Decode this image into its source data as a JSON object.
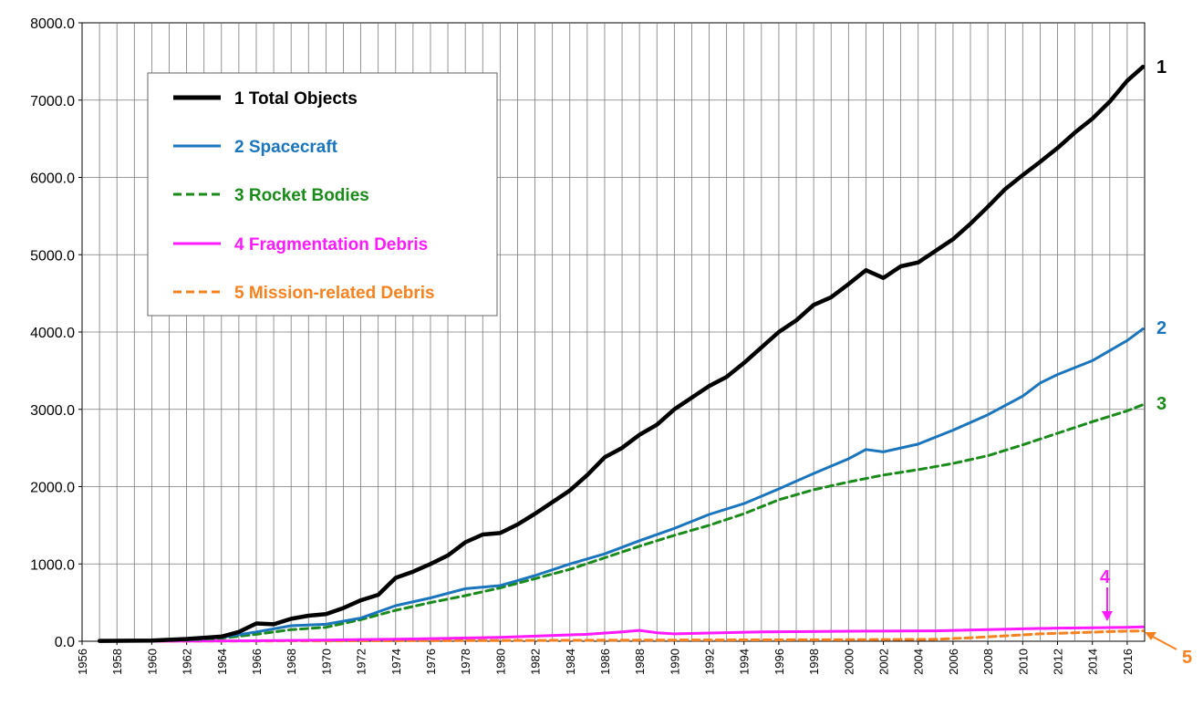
{
  "chart_data": {
    "type": "line",
    "title": "",
    "xlabel": "",
    "ylabel": "",
    "xlim": [
      1956,
      2017
    ],
    "ylim": [
      0,
      8000
    ],
    "grid": true,
    "legend_position": "top-left",
    "y_ticks": [
      "0.0",
      "1000.0",
      "2000.0",
      "3000.0",
      "4000.0",
      "5000.0",
      "6000.0",
      "7000.0",
      "8000.0"
    ],
    "x_ticks": [
      "1956",
      "1958",
      "1960",
      "1962",
      "1964",
      "1966",
      "1968",
      "1970",
      "1972",
      "1974",
      "1976",
      "1978",
      "1980",
      "1982",
      "1984",
      "1986",
      "1988",
      "1990",
      "1992",
      "1994",
      "1996",
      "1998",
      "2000",
      "2002",
      "2004",
      "2006",
      "2008",
      "2010",
      "2012",
      "2014",
      "2016"
    ],
    "series": [
      {
        "name": "1 Total Objects",
        "end_label": "1",
        "color": "#000000",
        "style": "solid",
        "x": [
          1957,
          1960,
          1962,
          1964,
          1965,
          1966,
          1967,
          1968,
          1969,
          1970,
          1971,
          1972,
          1973,
          1974,
          1975,
          1976,
          1977,
          1978,
          1979,
          1980,
          1981,
          1982,
          1983,
          1984,
          1985,
          1986,
          1987,
          1988,
          1989,
          1990,
          1991,
          1992,
          1993,
          1994,
          1995,
          1996,
          1997,
          1998,
          1999,
          2000,
          2001,
          2002,
          2003,
          2004,
          2005,
          2006,
          2007,
          2008,
          2009,
          2010,
          2011,
          2012,
          2013,
          2014,
          2015,
          2016,
          2016.9
        ],
        "values": [
          5,
          10,
          30,
          60,
          120,
          230,
          220,
          290,
          330,
          350,
          430,
          530,
          600,
          820,
          900,
          1000,
          1110,
          1280,
          1380,
          1400,
          1510,
          1650,
          1800,
          1950,
          2150,
          2380,
          2500,
          2670,
          2800,
          3000,
          3150,
          3300,
          3420,
          3600,
          3800,
          4000,
          4150,
          4350,
          4450,
          4620,
          4800,
          4700,
          4850,
          4900,
          5050,
          5200,
          5400,
          5620,
          5850,
          6030,
          6200,
          6380,
          6580,
          6760,
          6980,
          7250,
          7430
        ]
      },
      {
        "name": "2 Spacecraft",
        "end_label": "2",
        "color": "#1b75bc",
        "style": "solid",
        "x": [
          1957,
          1960,
          1962,
          1964,
          1966,
          1968,
          1970,
          1972,
          1974,
          1976,
          1978,
          1980,
          1982,
          1984,
          1986,
          1988,
          1990,
          1992,
          1994,
          1996,
          1998,
          2000,
          2001,
          2002,
          2004,
          2006,
          2008,
          2010,
          2011,
          2012,
          2014,
          2016,
          2016.9
        ],
        "values": [
          3,
          8,
          20,
          50,
          120,
          200,
          220,
          300,
          460,
          560,
          680,
          720,
          850,
          1000,
          1130,
          1300,
          1460,
          1640,
          1780,
          1970,
          2170,
          2360,
          2480,
          2450,
          2550,
          2730,
          2930,
          3170,
          3340,
          3450,
          3630,
          3890,
          4040
        ]
      },
      {
        "name": "3 Rocket Bodies",
        "end_label": "3",
        "color": "#1a8a1a",
        "style": "dashed",
        "x": [
          1957,
          1960,
          1962,
          1964,
          1966,
          1968,
          1970,
          1972,
          1974,
          1976,
          1978,
          1980,
          1982,
          1984,
          1986,
          1988,
          1990,
          1992,
          1994,
          1996,
          1998,
          2000,
          2002,
          2004,
          2006,
          2008,
          2010,
          2012,
          2014,
          2016,
          2016.9
        ],
        "values": [
          2,
          5,
          15,
          40,
          90,
          150,
          180,
          280,
          400,
          500,
          590,
          690,
          810,
          930,
          1080,
          1230,
          1370,
          1500,
          1650,
          1830,
          1960,
          2060,
          2150,
          2220,
          2300,
          2400,
          2540,
          2690,
          2840,
          2980,
          3060
        ]
      },
      {
        "name": "4 Fragmentation Debris",
        "end_label": "4",
        "color": "#ff1aff",
        "style": "solid",
        "x": [
          1957,
          1965,
          1970,
          1975,
          1980,
          1985,
          1987,
          1988,
          1989,
          1990,
          1995,
          2000,
          2005,
          2008,
          2010,
          2012,
          2014,
          2016,
          2016.9
        ],
        "values": [
          0,
          5,
          15,
          30,
          50,
          90,
          120,
          140,
          110,
          95,
          120,
          130,
          135,
          150,
          160,
          170,
          175,
          180,
          185
        ]
      },
      {
        "name": "5 Mission-related Debris",
        "end_label": "5",
        "color": "#f58220",
        "style": "dashed",
        "x": [
          1957,
          1970,
          1980,
          1990,
          2000,
          2005,
          2007,
          2009,
          2011,
          2013,
          2015,
          2016.9
        ],
        "values": [
          0,
          5,
          10,
          15,
          20,
          25,
          45,
          70,
          95,
          110,
          125,
          135
        ]
      }
    ]
  },
  "colors": {
    "total": "#000000",
    "spacecraft": "#1b75bc",
    "rocket_bodies": "#1a8a1a",
    "fragmentation": "#ff1aff",
    "mission_debris": "#f58220"
  }
}
